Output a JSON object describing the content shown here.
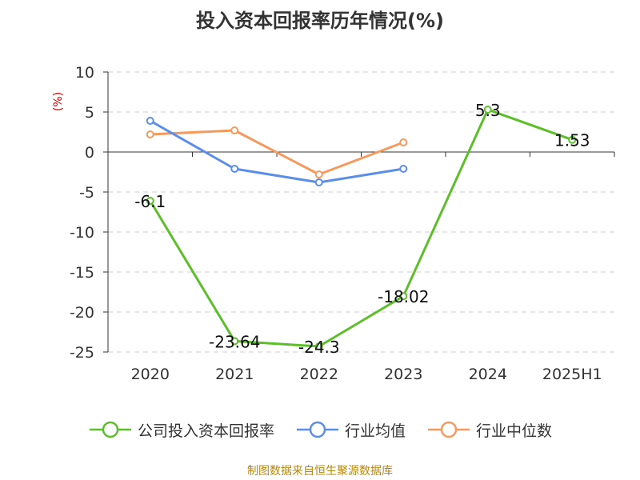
{
  "chart_data": {
    "type": "line",
    "title": "投入资本回报率历年情况(%)",
    "ylabel": "(%)",
    "categories": [
      "2020",
      "2021",
      "2022",
      "2023",
      "2024",
      "2025H1"
    ],
    "ylim": [
      -25,
      10
    ],
    "yticks": [
      10,
      5,
      0,
      -5,
      -10,
      -15,
      -20,
      -25
    ],
    "grid": true,
    "legend_position": "bottom",
    "series": [
      {
        "name": "公司投入资本回报率",
        "color": "#5cbf2a",
        "values": [
          -6.1,
          -23.64,
          -24.3,
          -18.02,
          5.3,
          1.53
        ],
        "labels": [
          "-6.1",
          "-23.64",
          "-24.3",
          "-18.02",
          "5.3",
          "1.53"
        ]
      },
      {
        "name": "行业均值",
        "color": "#5b8ee6",
        "values": [
          3.9,
          -2.1,
          -3.8,
          -2.1,
          null,
          null
        ]
      },
      {
        "name": "行业中位数",
        "color": "#f59a5f",
        "values": [
          2.2,
          2.7,
          -2.8,
          1.2,
          null,
          null
        ]
      }
    ]
  },
  "source": "制图数据来自恒生聚源数据库"
}
